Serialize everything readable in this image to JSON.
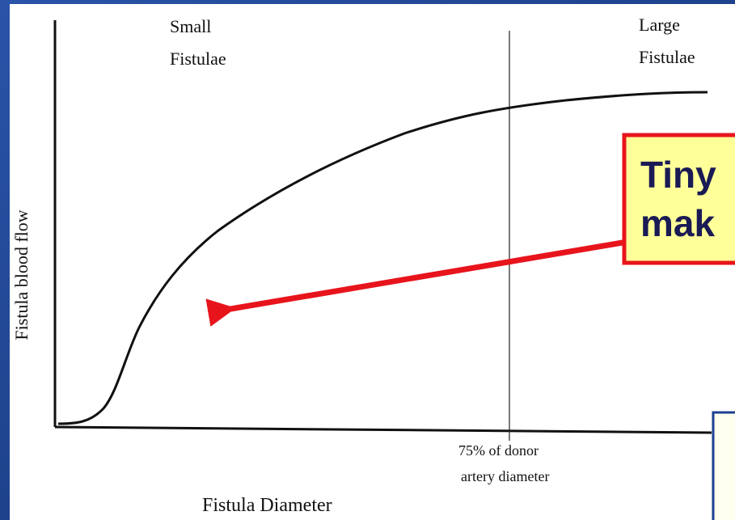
{
  "chart": {
    "y_axis_label": "Fistula blood flow",
    "x_axis_label": "Fistula Diameter",
    "regions": [
      {
        "lines": [
          "Small",
          "Fistulae"
        ]
      },
      {
        "lines": [
          "Large",
          "Fistulae"
        ]
      }
    ],
    "threshold_label": [
      "75% of donor",
      "artery diameter"
    ]
  },
  "callout": {
    "lines": [
      "Tiny",
      "mak"
    ]
  }
}
